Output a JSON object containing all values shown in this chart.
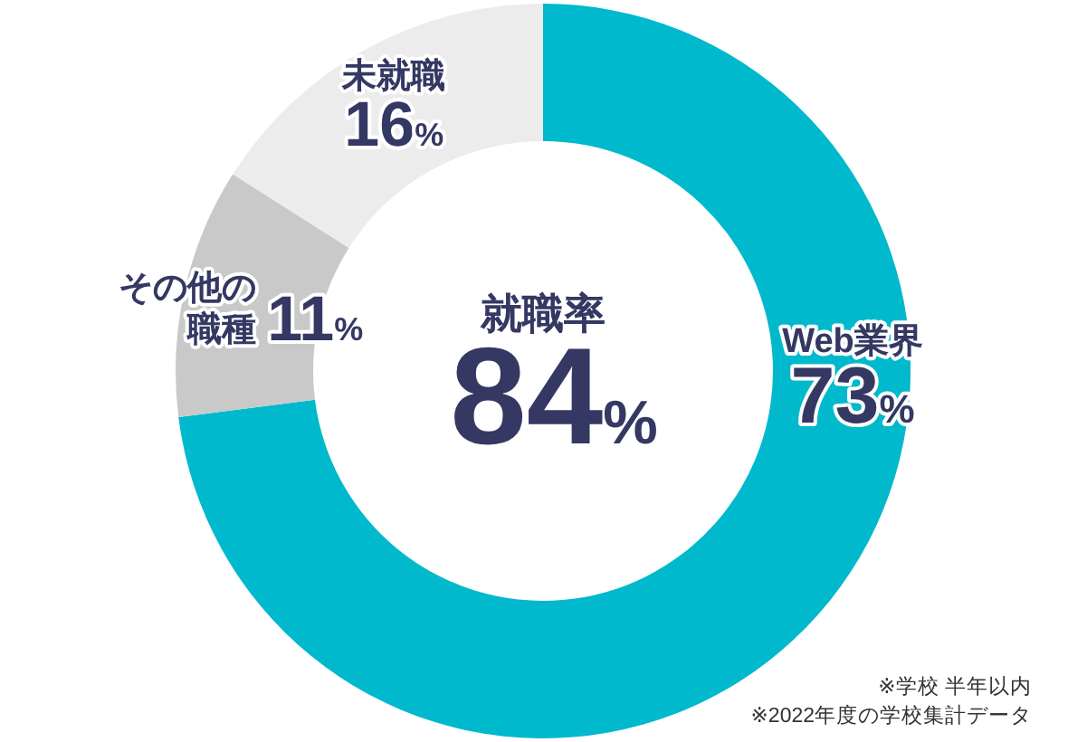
{
  "chart_data": {
    "type": "donut",
    "categories": [
      "Web業界",
      "その他の職種",
      "未就職"
    ],
    "values": [
      73,
      11,
      16
    ],
    "colors": [
      "#00b9cc",
      "#c9c9c9",
      "#ececec"
    ],
    "value_labels": [
      "73%",
      "11%",
      "16%"
    ],
    "annotations": [
      "就職率",
      "84%",
      "※学校 半年以内",
      "※2022年度の学校集計データ"
    ]
  }
}
